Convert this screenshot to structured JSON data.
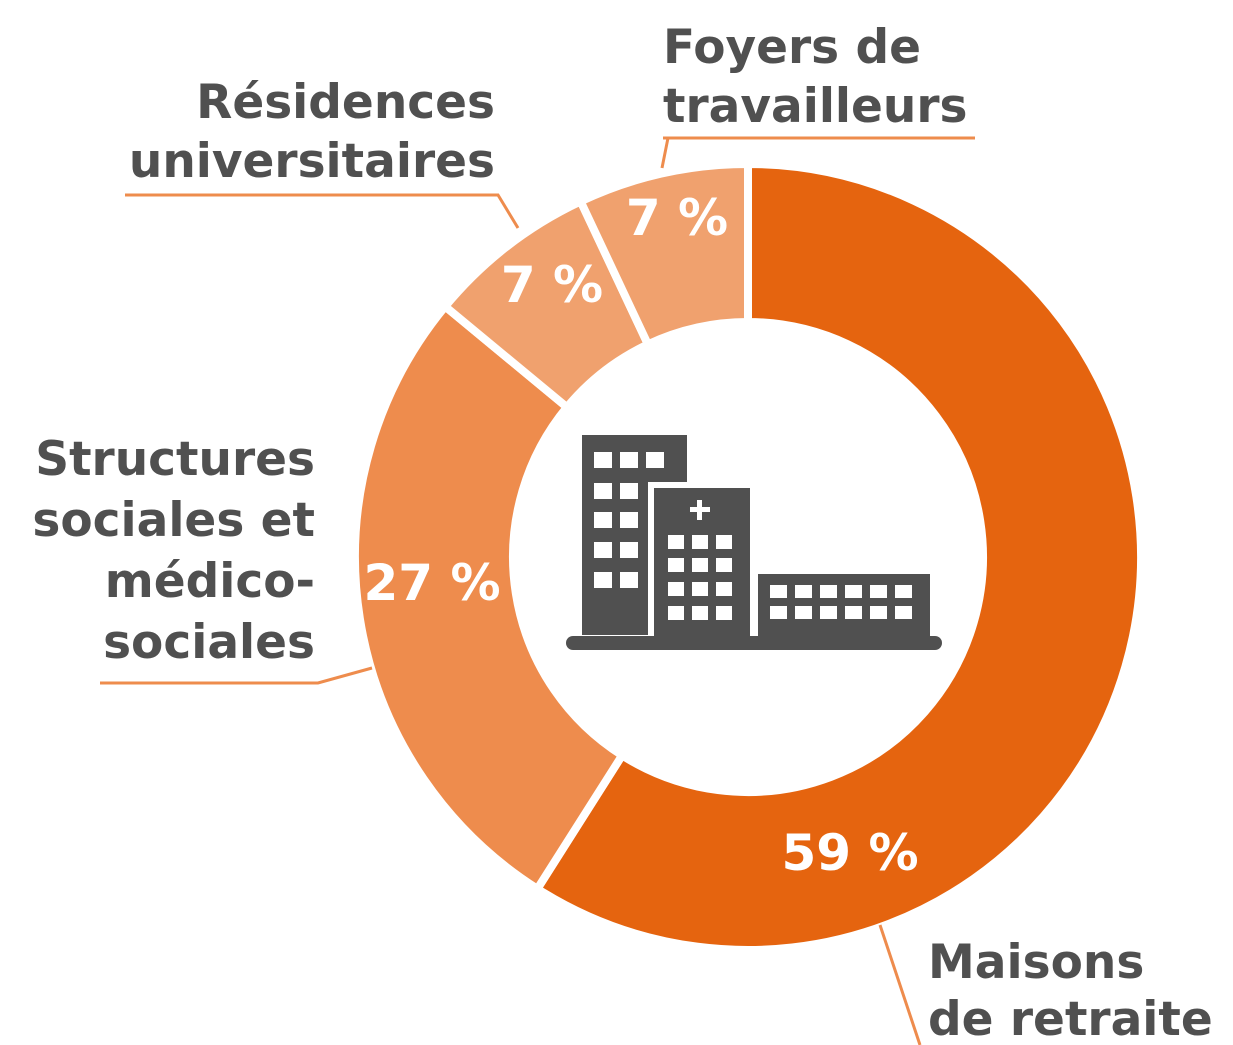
{
  "chart_data": {
    "type": "donut",
    "categories": [
      [
        "Maisons",
        "de retraite"
      ],
      [
        "Structures",
        "sociales et",
        "médico-",
        "sociales"
      ],
      [
        "Résidences",
        "universitaires"
      ],
      [
        "Foyers de",
        "travailleurs"
      ]
    ],
    "values": [
      59,
      27,
      7,
      7
    ],
    "value_labels": [
      "59 %",
      "27 %",
      "7 %",
      "7 %"
    ],
    "colors": [
      "#e5640f",
      "#ee8c4d",
      "#f0a16e",
      "#f0a16e"
    ]
  }
}
